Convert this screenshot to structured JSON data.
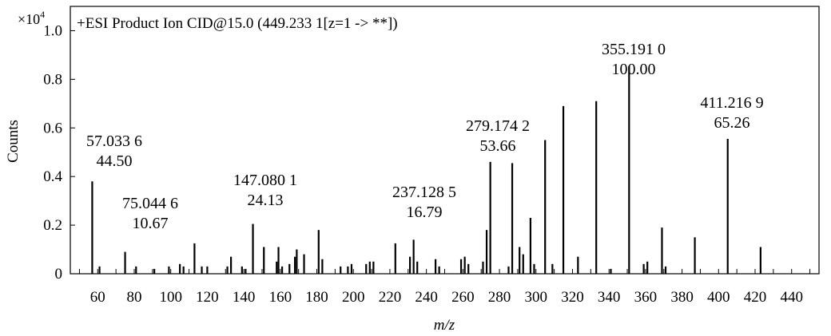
{
  "chart_data": {
    "type": "bar",
    "title": "+ESI Product Ion CID@15.0 (449.233 1[z=1 -> **])",
    "xlabel": "m/z",
    "ylabel": "Counts",
    "y_multiplier_label": "×10",
    "y_multiplier_exponent": "4",
    "xlim": [
      45,
      455
    ],
    "ylim": [
      0,
      1.1
    ],
    "x_ticks": [
      60,
      80,
      100,
      120,
      140,
      160,
      180,
      200,
      220,
      240,
      260,
      280,
      300,
      320,
      340,
      360,
      380,
      400,
      420,
      440
    ],
    "y_ticks": [
      {
        "value": 0,
        "label": "0"
      },
      {
        "value": 0.2,
        "label": "0.2"
      },
      {
        "value": 0.4,
        "label": "0.4"
      },
      {
        "value": 0.6,
        "label": "0.6"
      },
      {
        "value": 0.8,
        "label": "0.8"
      },
      {
        "value": 1.0,
        "label": "1.0"
      }
    ],
    "grid": false,
    "peaks": [
      {
        "mz": 57.0,
        "value": 0.38
      },
      {
        "mz": 61.0,
        "value": 0.03
      },
      {
        "mz": 75.0,
        "value": 0.09
      },
      {
        "mz": 81.0,
        "value": 0.03
      },
      {
        "mz": 91.0,
        "value": 0.02
      },
      {
        "mz": 99.0,
        "value": 0.03
      },
      {
        "mz": 105.0,
        "value": 0.04
      },
      {
        "mz": 107.0,
        "value": 0.03
      },
      {
        "mz": 113.0,
        "value": 0.125
      },
      {
        "mz": 117.0,
        "value": 0.03
      },
      {
        "mz": 120.0,
        "value": 0.03
      },
      {
        "mz": 131.0,
        "value": 0.03
      },
      {
        "mz": 133.0,
        "value": 0.07
      },
      {
        "mz": 139.0,
        "value": 0.03
      },
      {
        "mz": 141.0,
        "value": 0.02
      },
      {
        "mz": 145.0,
        "value": 0.205
      },
      {
        "mz": 151.0,
        "value": 0.11
      },
      {
        "mz": 158.0,
        "value": 0.05
      },
      {
        "mz": 159.0,
        "value": 0.11
      },
      {
        "mz": 161.0,
        "value": 0.03
      },
      {
        "mz": 165.0,
        "value": 0.04
      },
      {
        "mz": 168.0,
        "value": 0.07
      },
      {
        "mz": 169.0,
        "value": 0.1
      },
      {
        "mz": 173.0,
        "value": 0.08
      },
      {
        "mz": 181.0,
        "value": 0.18
      },
      {
        "mz": 183.0,
        "value": 0.06
      },
      {
        "mz": 193.0,
        "value": 0.03
      },
      {
        "mz": 197.0,
        "value": 0.03
      },
      {
        "mz": 199.0,
        "value": 0.04
      },
      {
        "mz": 207.0,
        "value": 0.04
      },
      {
        "mz": 209.0,
        "value": 0.05
      },
      {
        "mz": 211.0,
        "value": 0.05
      },
      {
        "mz": 223.0,
        "value": 0.125
      },
      {
        "mz": 231.0,
        "value": 0.07
      },
      {
        "mz": 233.0,
        "value": 0.14
      },
      {
        "mz": 235.0,
        "value": 0.05
      },
      {
        "mz": 245.0,
        "value": 0.06
      },
      {
        "mz": 247.0,
        "value": 0.03
      },
      {
        "mz": 259.0,
        "value": 0.06
      },
      {
        "mz": 261.0,
        "value": 0.07
      },
      {
        "mz": 263.0,
        "value": 0.04
      },
      {
        "mz": 271.0,
        "value": 0.05
      },
      {
        "mz": 273.0,
        "value": 0.18
      },
      {
        "mz": 275.0,
        "value": 0.46
      },
      {
        "mz": 285.0,
        "value": 0.03
      },
      {
        "mz": 287.0,
        "value": 0.455
      },
      {
        "mz": 291.0,
        "value": 0.11
      },
      {
        "mz": 293.0,
        "value": 0.08
      },
      {
        "mz": 297.0,
        "value": 0.23
      },
      {
        "mz": 299.0,
        "value": 0.04
      },
      {
        "mz": 305.0,
        "value": 0.55
      },
      {
        "mz": 309.0,
        "value": 0.04
      },
      {
        "mz": 315.0,
        "value": 0.69
      },
      {
        "mz": 323.0,
        "value": 0.07
      },
      {
        "mz": 333.0,
        "value": 0.71
      },
      {
        "mz": 341.0,
        "value": 0.02
      },
      {
        "mz": 351.0,
        "value": 0.855
      },
      {
        "mz": 359.0,
        "value": 0.04
      },
      {
        "mz": 361.0,
        "value": 0.05
      },
      {
        "mz": 369.0,
        "value": 0.19
      },
      {
        "mz": 371.0,
        "value": 0.03
      },
      {
        "mz": 387.0,
        "value": 0.15
      },
      {
        "mz": 405.0,
        "value": 0.555
      },
      {
        "mz": 423.0,
        "value": 0.11
      }
    ],
    "annotations": [
      {
        "mz_text": "57.033 6",
        "rel_text": "44.50"
      },
      {
        "mz_text": "75.044 6",
        "rel_text": "10.67"
      },
      {
        "mz_text": "147.080 1",
        "rel_text": "24.13"
      },
      {
        "mz_text": "237.128 5",
        "rel_text": "16.79"
      },
      {
        "mz_text": "279.174 2",
        "rel_text": "53.66"
      },
      {
        "mz_text": "355.191 0",
        "rel_text": "100.00"
      },
      {
        "mz_text": "411.216 9",
        "rel_text": "65.26"
      }
    ]
  }
}
